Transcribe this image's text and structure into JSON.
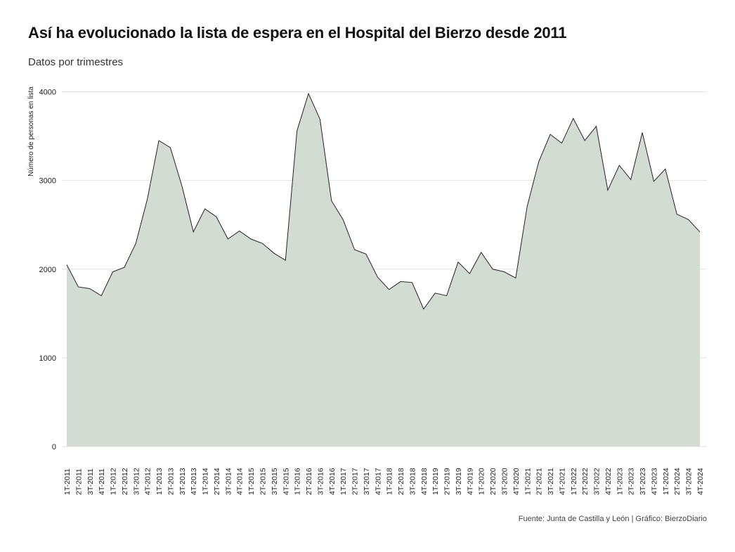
{
  "header": {
    "title": "Así ha evolucionado la lista de espera en el Hospital del Bierzo desde 2011",
    "subtitle": "Datos por trimestres"
  },
  "caption": "Fuente: Junta de Castilla y León | Gráfico: BierzoDiario",
  "colors": {
    "area_fill": "#d3dcd2",
    "line": "#222222",
    "grid": "#e2e2e2"
  },
  "chart_data": {
    "type": "area",
    "title": "Así ha evolucionado la lista de espera en el Hospital del Bierzo desde 2011",
    "subtitle": "Datos por trimestres",
    "xlabel": "",
    "ylabel": "Número de personas en lista",
    "ylim": [
      0,
      4000
    ],
    "yticks": [
      0,
      1000,
      2000,
      3000,
      4000
    ],
    "grid": true,
    "legend": "none",
    "categories": [
      "1T-2011",
      "2T-2011",
      "3T-2011",
      "4T-2011",
      "1T-2012",
      "2T-2012",
      "3T-2012",
      "4T-2012",
      "1T-2013",
      "2T-2013",
      "3T-2013",
      "4T-2013",
      "1T-2014",
      "2T-2014",
      "3T-2014",
      "4T-2014",
      "1T-2015",
      "2T-2015",
      "3T-2015",
      "4T-2015",
      "1T-2016",
      "2T-2016",
      "3T-2016",
      "4T-2016",
      "1T-2017",
      "2T-2017",
      "3T-2017",
      "4T-2017",
      "1T-2018",
      "2T-2018",
      "3T-2018",
      "4T-2018",
      "1T-2019",
      "2T-2019",
      "3T-2019",
      "4T-2019",
      "1T-2020",
      "2T-2020",
      "3T-2020",
      "4T-2020",
      "1T-2021",
      "2T-2021",
      "3T-2021",
      "4T-2021",
      "1T-2022",
      "2T-2022",
      "3T-2022",
      "4T-2022",
      "1T-2023",
      "2T-2023",
      "3T-2023",
      "4T-2023",
      "1T-2024",
      "2T-2024",
      "3T-2024",
      "4T-2024"
    ],
    "values": [
      2050,
      1800,
      1780,
      1700,
      1970,
      2020,
      2290,
      2790,
      3450,
      3370,
      2940,
      2420,
      2680,
      2590,
      2340,
      2430,
      2340,
      2290,
      2180,
      2100,
      3560,
      3980,
      3690,
      2770,
      2560,
      2220,
      2170,
      1910,
      1770,
      1860,
      1850,
      1550,
      1730,
      1700,
      2080,
      1950,
      2190,
      2000,
      1970,
      1900,
      2710,
      3210,
      3520,
      3420,
      3700,
      3450,
      3610,
      2890,
      3170,
      3010,
      3540,
      2990,
      3130,
      2620,
      2560,
      2420
    ]
  }
}
